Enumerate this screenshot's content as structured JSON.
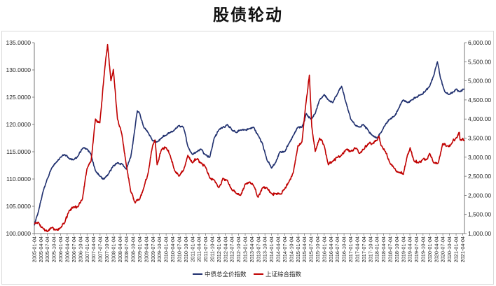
{
  "chart_data": {
    "type": "line",
    "title": "股债轮动",
    "x_start": "2005-01-04",
    "x_end": "2021-04-30",
    "x_tick_labels": [
      "2005-01-04",
      "2005-04-04",
      "2005-07-04",
      "2005-10-04",
      "2006-01-04",
      "2006-04-04",
      "2006-07-04",
      "2006-10-04",
      "2007-01-04",
      "2007-04-04",
      "2007-07-04",
      "2007-10-04",
      "2008-01-04",
      "2008-04-04",
      "2008-07-04",
      "2008-10-04",
      "2009-01-04",
      "2009-04-04",
      "2009-07-04",
      "2009-10-04",
      "2010-01-04",
      "2010-04-04",
      "2010-07-04",
      "2010-10-04",
      "2011-01-04",
      "2011-04-04",
      "2011-07-04",
      "2011-10-04",
      "2012-01-04",
      "2012-04-04",
      "2012-07-04",
      "2012-10-04",
      "2013-01-04",
      "2013-04-04",
      "2013-07-04",
      "2013-10-04",
      "2014-01-04",
      "2014-04-04",
      "2014-07-04",
      "2014-10-04",
      "2015-01-04",
      "2015-04-04",
      "2015-07-04",
      "2015-10-04",
      "2016-01-04",
      "2016-04-04",
      "2016-07-04",
      "2016-10-04",
      "2017-01-04",
      "2017-04-04",
      "2017-07-04",
      "2017-10-04",
      "2018-01-04",
      "2018-04-04",
      "2018-07-04",
      "2018-10-04",
      "2019-01-04",
      "2019-04-04",
      "2019-07-04",
      "2019-10-04",
      "2020-01-04",
      "2020-04-04",
      "2020-07-04",
      "2020-10-04",
      "2021-01-04",
      "2021-04-04"
    ],
    "y_left": {
      "min": 100,
      "max": 135,
      "ticks": [
        "100.0000",
        "105.0000",
        "110.0000",
        "115.0000",
        "120.0000",
        "125.0000",
        "130.0000",
        "135.0000"
      ]
    },
    "y_right": {
      "min": 1000,
      "max": 6000,
      "ticks": [
        "1,000.00",
        "1,500.00",
        "2,000.00",
        "2,500.00",
        "3,000.00",
        "3,500.00",
        "4,000.00",
        "4,500.00",
        "5,000.00",
        "5,500.00",
        "6,000.00"
      ]
    },
    "grid": false,
    "legend_position": "bottom",
    "series": [
      {
        "name": "中债总全价指数",
        "axis": "left",
        "color": "#1f2f6e",
        "points": [
          [
            "2005-01-04",
            101.5
          ],
          [
            "2005-03-01",
            104.0
          ],
          [
            "2005-05-01",
            107.5
          ],
          [
            "2005-07-01",
            110.0
          ],
          [
            "2005-09-01",
            112.0
          ],
          [
            "2005-11-01",
            113.0
          ],
          [
            "2006-01-04",
            114.0
          ],
          [
            "2006-03-01",
            114.5
          ],
          [
            "2006-05-01",
            113.8
          ],
          [
            "2006-07-01",
            113.5
          ],
          [
            "2006-09-01",
            114.2
          ],
          [
            "2006-11-01",
            115.6
          ],
          [
            "2007-01-04",
            115.5
          ],
          [
            "2007-03-01",
            114.5
          ],
          [
            "2007-05-01",
            111.5
          ],
          [
            "2007-07-01",
            110.5
          ],
          [
            "2007-09-01",
            110.0
          ],
          [
            "2007-11-01",
            111.0
          ],
          [
            "2008-01-04",
            112.5
          ],
          [
            "2008-03-01",
            113.0
          ],
          [
            "2008-05-01",
            112.8
          ],
          [
            "2008-07-01",
            111.8
          ],
          [
            "2008-09-01",
            114.0
          ],
          [
            "2008-10-15",
            118.0
          ],
          [
            "2008-12-01",
            122.5
          ],
          [
            "2009-01-04",
            122.0
          ],
          [
            "2009-03-01",
            119.5
          ],
          [
            "2009-05-01",
            118.5
          ],
          [
            "2009-07-01",
            117.0
          ],
          [
            "2009-09-01",
            116.8
          ],
          [
            "2009-11-01",
            117.5
          ],
          [
            "2010-01-04",
            118.0
          ],
          [
            "2010-03-01",
            118.5
          ],
          [
            "2010-05-01",
            119.0
          ],
          [
            "2010-07-01",
            119.8
          ],
          [
            "2010-09-01",
            119.5
          ],
          [
            "2010-11-01",
            116.0
          ],
          [
            "2011-01-04",
            114.5
          ],
          [
            "2011-03-01",
            115.0
          ],
          [
            "2011-05-01",
            115.5
          ],
          [
            "2011-07-01",
            114.5
          ],
          [
            "2011-09-01",
            114.0
          ],
          [
            "2011-11-01",
            117.5
          ],
          [
            "2012-01-04",
            119.0
          ],
          [
            "2012-03-01",
            119.5
          ],
          [
            "2012-05-01",
            120.0
          ],
          [
            "2012-07-01",
            119.0
          ],
          [
            "2012-09-01",
            118.5
          ],
          [
            "2012-11-01",
            119.0
          ],
          [
            "2013-01-04",
            119.0
          ],
          [
            "2013-03-01",
            119.2
          ],
          [
            "2013-05-01",
            119.5
          ],
          [
            "2013-07-01",
            118.0
          ],
          [
            "2013-09-01",
            116.5
          ],
          [
            "2013-11-01",
            113.5
          ],
          [
            "2014-01-04",
            112.0
          ],
          [
            "2014-03-01",
            113.0
          ],
          [
            "2014-05-01",
            115.0
          ],
          [
            "2014-07-01",
            115.0
          ],
          [
            "2014-09-01",
            116.5
          ],
          [
            "2014-11-01",
            118.0
          ],
          [
            "2015-01-04",
            119.5
          ],
          [
            "2015-03-01",
            119.5
          ],
          [
            "2015-05-01",
            122.0
          ],
          [
            "2015-07-01",
            121.0
          ],
          [
            "2015-09-01",
            122.0
          ],
          [
            "2015-11-01",
            124.5
          ],
          [
            "2016-01-04",
            125.5
          ],
          [
            "2016-03-01",
            124.5
          ],
          [
            "2016-05-01",
            124.0
          ],
          [
            "2016-07-01",
            125.5
          ],
          [
            "2016-09-01",
            127.0
          ],
          [
            "2016-11-01",
            124.0
          ],
          [
            "2017-01-04",
            121.0
          ],
          [
            "2017-03-01",
            120.0
          ],
          [
            "2017-05-01",
            119.5
          ],
          [
            "2017-07-01",
            120.0
          ],
          [
            "2017-09-01",
            119.0
          ],
          [
            "2017-11-01",
            118.0
          ],
          [
            "2018-01-04",
            117.5
          ],
          [
            "2018-03-01",
            118.5
          ],
          [
            "2018-05-01",
            120.0
          ],
          [
            "2018-07-01",
            121.0
          ],
          [
            "2018-09-01",
            121.5
          ],
          [
            "2018-11-01",
            123.0
          ],
          [
            "2019-01-04",
            124.5
          ],
          [
            "2019-03-01",
            124.0
          ],
          [
            "2019-05-01",
            124.5
          ],
          [
            "2019-07-01",
            125.0
          ],
          [
            "2019-09-01",
            125.5
          ],
          [
            "2019-11-01",
            126.0
          ],
          [
            "2020-01-04",
            127.0
          ],
          [
            "2020-03-01",
            129.0
          ],
          [
            "2020-04-20",
            131.5
          ],
          [
            "2020-06-01",
            128.5
          ],
          [
            "2020-08-01",
            126.0
          ],
          [
            "2020-10-01",
            125.5
          ],
          [
            "2020-12-01",
            126.0
          ],
          [
            "2021-01-04",
            126.5
          ],
          [
            "2021-03-01",
            126.0
          ],
          [
            "2021-04-30",
            126.5
          ]
        ]
      },
      {
        "name": "上证综合指数",
        "axis": "right",
        "color": "#c00000",
        "points": [
          [
            "2005-01-04",
            1250
          ],
          [
            "2005-03-01",
            1300
          ],
          [
            "2005-05-01",
            1150
          ],
          [
            "2005-07-01",
            1050
          ],
          [
            "2005-09-01",
            1150
          ],
          [
            "2005-11-01",
            1100
          ],
          [
            "2006-01-04",
            1150
          ],
          [
            "2006-03-01",
            1280
          ],
          [
            "2006-05-01",
            1600
          ],
          [
            "2006-07-01",
            1700
          ],
          [
            "2006-09-01",
            1700
          ],
          [
            "2006-11-01",
            1900
          ],
          [
            "2007-01-04",
            2700
          ],
          [
            "2007-03-01",
            2900
          ],
          [
            "2007-05-01",
            4000
          ],
          [
            "2007-07-01",
            3900
          ],
          [
            "2007-09-01",
            5200
          ],
          [
            "2007-10-16",
            5950
          ],
          [
            "2007-12-01",
            5000
          ],
          [
            "2008-01-04",
            5300
          ],
          [
            "2008-03-01",
            4000
          ],
          [
            "2008-05-01",
            3600
          ],
          [
            "2008-07-01",
            2800
          ],
          [
            "2008-09-01",
            2100
          ],
          [
            "2008-11-01",
            1800
          ],
          [
            "2009-01-04",
            1900
          ],
          [
            "2009-03-01",
            2200
          ],
          [
            "2009-05-01",
            2600
          ],
          [
            "2009-07-01",
            3300
          ],
          [
            "2009-08-04",
            3450
          ],
          [
            "2009-09-01",
            2800
          ],
          [
            "2009-11-01",
            3200
          ],
          [
            "2010-01-04",
            3250
          ],
          [
            "2010-03-01",
            3050
          ],
          [
            "2010-05-01",
            2650
          ],
          [
            "2010-07-01",
            2500
          ],
          [
            "2010-09-01",
            2650
          ],
          [
            "2010-11-01",
            3050
          ],
          [
            "2011-01-04",
            2850
          ],
          [
            "2011-03-01",
            2950
          ],
          [
            "2011-05-01",
            2850
          ],
          [
            "2011-07-01",
            2750
          ],
          [
            "2011-09-01",
            2450
          ],
          [
            "2011-11-01",
            2400
          ],
          [
            "2012-01-04",
            2200
          ],
          [
            "2012-03-01",
            2450
          ],
          [
            "2012-05-01",
            2400
          ],
          [
            "2012-07-01",
            2150
          ],
          [
            "2012-09-01",
            2050
          ],
          [
            "2012-11-01",
            2000
          ],
          [
            "2013-01-04",
            2300
          ],
          [
            "2013-03-01",
            2350
          ],
          [
            "2013-05-01",
            2250
          ],
          [
            "2013-07-01",
            1950
          ],
          [
            "2013-09-01",
            2200
          ],
          [
            "2013-11-01",
            2200
          ],
          [
            "2014-01-04",
            2050
          ],
          [
            "2014-03-01",
            2050
          ],
          [
            "2014-05-01",
            2030
          ],
          [
            "2014-07-01",
            2150
          ],
          [
            "2014-09-01",
            2350
          ],
          [
            "2014-11-01",
            2600
          ],
          [
            "2015-01-04",
            3300
          ],
          [
            "2015-03-01",
            3400
          ],
          [
            "2015-05-01",
            4500
          ],
          [
            "2015-06-12",
            5150
          ],
          [
            "2015-07-15",
            3800
          ],
          [
            "2015-09-01",
            3150
          ],
          [
            "2015-11-01",
            3500
          ],
          [
            "2016-01-04",
            3300
          ],
          [
            "2016-03-01",
            2800
          ],
          [
            "2016-05-01",
            2900
          ],
          [
            "2016-07-01",
            3000
          ],
          [
            "2016-09-01",
            3050
          ],
          [
            "2016-11-01",
            3200
          ],
          [
            "2017-01-04",
            3150
          ],
          [
            "2017-03-01",
            3250
          ],
          [
            "2017-05-01",
            3100
          ],
          [
            "2017-07-01",
            3200
          ],
          [
            "2017-09-01",
            3350
          ],
          [
            "2017-11-01",
            3350
          ],
          [
            "2018-01-04",
            3450
          ],
          [
            "2018-02-01",
            3550
          ],
          [
            "2018-03-01",
            3300
          ],
          [
            "2018-05-01",
            3150
          ],
          [
            "2018-07-01",
            2850
          ],
          [
            "2018-09-01",
            2700
          ],
          [
            "2018-11-01",
            2600
          ],
          [
            "2019-01-04",
            2550
          ],
          [
            "2019-03-01",
            3050
          ],
          [
            "2019-04-08",
            3250
          ],
          [
            "2019-06-01",
            2900
          ],
          [
            "2019-08-01",
            2850
          ],
          [
            "2019-10-01",
            2950
          ],
          [
            "2019-12-01",
            2950
          ],
          [
            "2020-01-04",
            3100
          ],
          [
            "2020-03-01",
            2850
          ],
          [
            "2020-05-01",
            2850
          ],
          [
            "2020-07-01",
            3350
          ],
          [
            "2020-09-01",
            3300
          ],
          [
            "2020-11-01",
            3350
          ],
          [
            "2021-01-04",
            3500
          ],
          [
            "2021-02-18",
            3650
          ],
          [
            "2021-03-01",
            3450
          ],
          [
            "2021-04-30",
            3450
          ]
        ]
      }
    ]
  }
}
